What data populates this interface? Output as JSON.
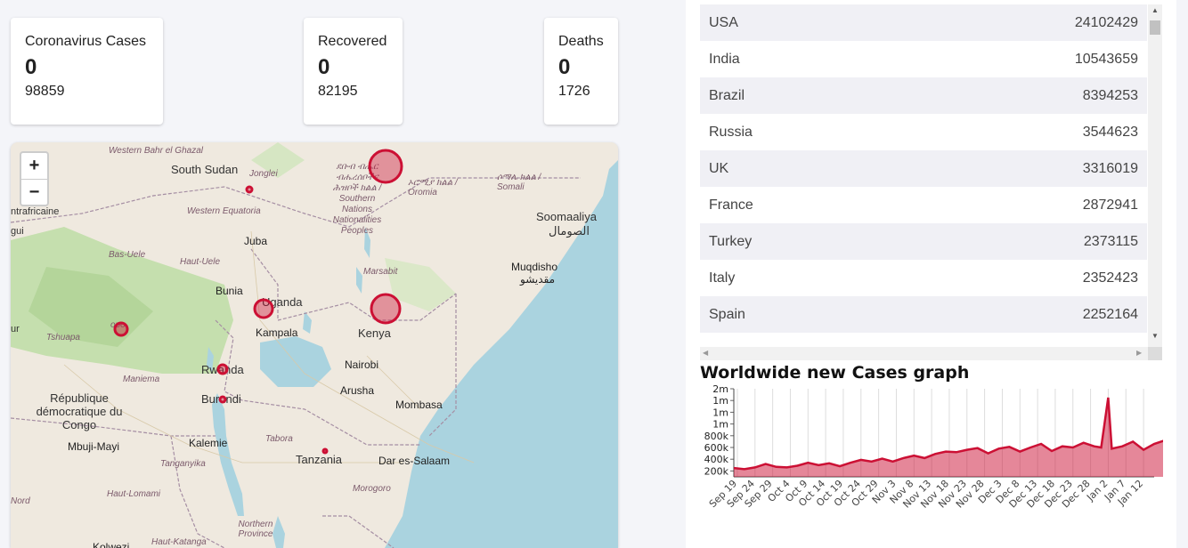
{
  "stats": {
    "cases": {
      "title": "Coronavirus Cases",
      "today": "0",
      "total": "98859"
    },
    "recovered": {
      "title": "Recovered",
      "today": "0",
      "total": "82195"
    },
    "deaths": {
      "title": "Deaths",
      "today": "0",
      "total": "1726"
    }
  },
  "map": {
    "zoom_in": "+",
    "zoom_out": "−",
    "labels": {
      "south_sudan": "South Sudan",
      "western_bahr": "Western Bahr el Ghazal",
      "jonglei": "Jonglei",
      "western_equatoria": "Western Equatoria",
      "juba": "Juba",
      "bas_uele": "Bas-Uele",
      "haut_uele": "Haut-Uele",
      "bunia": "Bunia",
      "uganda": "Uganda",
      "kampala": "Kampala",
      "kenya": "Kenya",
      "nairobi": "Nairobi",
      "marsabit": "Marsabit",
      "rwanda": "Rwanda",
      "burundi": "Burundi",
      "maniema": "Maniema",
      "arusha": "Arusha",
      "mombasa": "Mombasa",
      "rdc": "République démocratique du Congo",
      "tshuapa": "Tshuapa",
      "mbuji_mayi": "Mbuji-Mayi",
      "kalemie": "Kalemie",
      "tabora": "Tabora",
      "tanzania": "Tanzania",
      "dar": "Dar es-Salaam",
      "tanganyika": "Tanganyika",
      "morogoro": "Morogoro",
      "haut_lomami": "Haut-Lomami",
      "northern_province": "Northern Province",
      "haut_katanga": "Haut-Katanga",
      "kolwezi": "Kolwezi",
      "mogadishu": "Muqdisho",
      "mogadishu_ar": "مقديشو",
      "somalia": "Soomaaliya",
      "somalia_ar": "الصومال",
      "somali_region": "ሶማሌ ክልል / Somali",
      "oromia": "ኦሮሚያ ክልል / Oromia",
      "snnp": "ደቡብ ብሔር ብሔረሰቦችና ሕዝቦች ክልል / Southern Nations Nationalities Peoples",
      "centrafricaine": "ntrafricaine",
      "gui": "gui",
      "north": "Nord",
      "kuru": "ur",
      "lopo": "opo"
    }
  },
  "countries": [
    {
      "name": "USA",
      "cases": "24102429"
    },
    {
      "name": "India",
      "cases": "10543659"
    },
    {
      "name": "Brazil",
      "cases": "8394253"
    },
    {
      "name": "Russia",
      "cases": "3544623"
    },
    {
      "name": "UK",
      "cases": "3316019"
    },
    {
      "name": "France",
      "cases": "2872941"
    },
    {
      "name": "Turkey",
      "cases": "2373115"
    },
    {
      "name": "Italy",
      "cases": "2352423"
    },
    {
      "name": "Spain",
      "cases": "2252164"
    }
  ],
  "graph": {
    "title": "Worldwide new Cases graph"
  },
  "chart_data": {
    "type": "area",
    "title": "Worldwide new Cases graph",
    "xlabel": "",
    "ylabel": "",
    "y_tick_labels": [
      "200k",
      "400k",
      "600k",
      "800k",
      "1m",
      "1m",
      "1m",
      "2m"
    ],
    "y_ticks": [
      200000,
      400000,
      600000,
      800000,
      1000000,
      1200000,
      1400000,
      1600000
    ],
    "ylim": [
      0,
      1600000
    ],
    "x_tick_labels": [
      "Sep 19",
      "Sep 24",
      "Sep 29",
      "Oct 4",
      "Oct 9",
      "Oct 14",
      "Oct 19",
      "Oct 24",
      "Oct 29",
      "Nov 3",
      "Nov 8",
      "Nov 13",
      "Nov 18",
      "Nov 23",
      "Nov 28",
      "Dec 3",
      "Dec 8",
      "Dec 13",
      "Dec 18",
      "Dec 23",
      "Dec 28",
      "Jan 2",
      "Jan 7",
      "Jan 12"
    ],
    "x_start": "2020-09-18",
    "x_end": "2021-01-15",
    "series": [
      {
        "name": "New cases",
        "color": "#cc1034",
        "values": [
          [
            0,
            250000
          ],
          [
            3,
            230000
          ],
          [
            6,
            260000
          ],
          [
            9,
            320000
          ],
          [
            12,
            270000
          ],
          [
            15,
            260000
          ],
          [
            18,
            290000
          ],
          [
            21,
            340000
          ],
          [
            24,
            300000
          ],
          [
            27,
            330000
          ],
          [
            30,
            280000
          ],
          [
            33,
            340000
          ],
          [
            36,
            390000
          ],
          [
            39,
            360000
          ],
          [
            42,
            410000
          ],
          [
            45,
            360000
          ],
          [
            48,
            420000
          ],
          [
            51,
            460000
          ],
          [
            54,
            420000
          ],
          [
            57,
            490000
          ],
          [
            60,
            530000
          ],
          [
            63,
            520000
          ],
          [
            66,
            560000
          ],
          [
            69,
            590000
          ],
          [
            72,
            500000
          ],
          [
            75,
            580000
          ],
          [
            78,
            610000
          ],
          [
            81,
            530000
          ],
          [
            84,
            600000
          ],
          [
            87,
            660000
          ],
          [
            90,
            540000
          ],
          [
            93,
            620000
          ],
          [
            96,
            600000
          ],
          [
            99,
            680000
          ],
          [
            102,
            620000
          ],
          [
            104,
            600000
          ],
          [
            106,
            1450000
          ],
          [
            107,
            580000
          ],
          [
            110,
            620000
          ],
          [
            113,
            700000
          ],
          [
            116,
            560000
          ],
          [
            119,
            660000
          ],
          [
            122,
            720000
          ],
          [
            125,
            560000
          ],
          [
            128,
            600000
          ],
          [
            131,
            730000
          ],
          [
            134,
            560000
          ],
          [
            137,
            760000
          ],
          [
            140,
            820000
          ],
          [
            143,
            680000
          ],
          [
            146,
            700000
          ],
          [
            149,
            720000
          ]
        ]
      }
    ],
    "grid": true
  }
}
